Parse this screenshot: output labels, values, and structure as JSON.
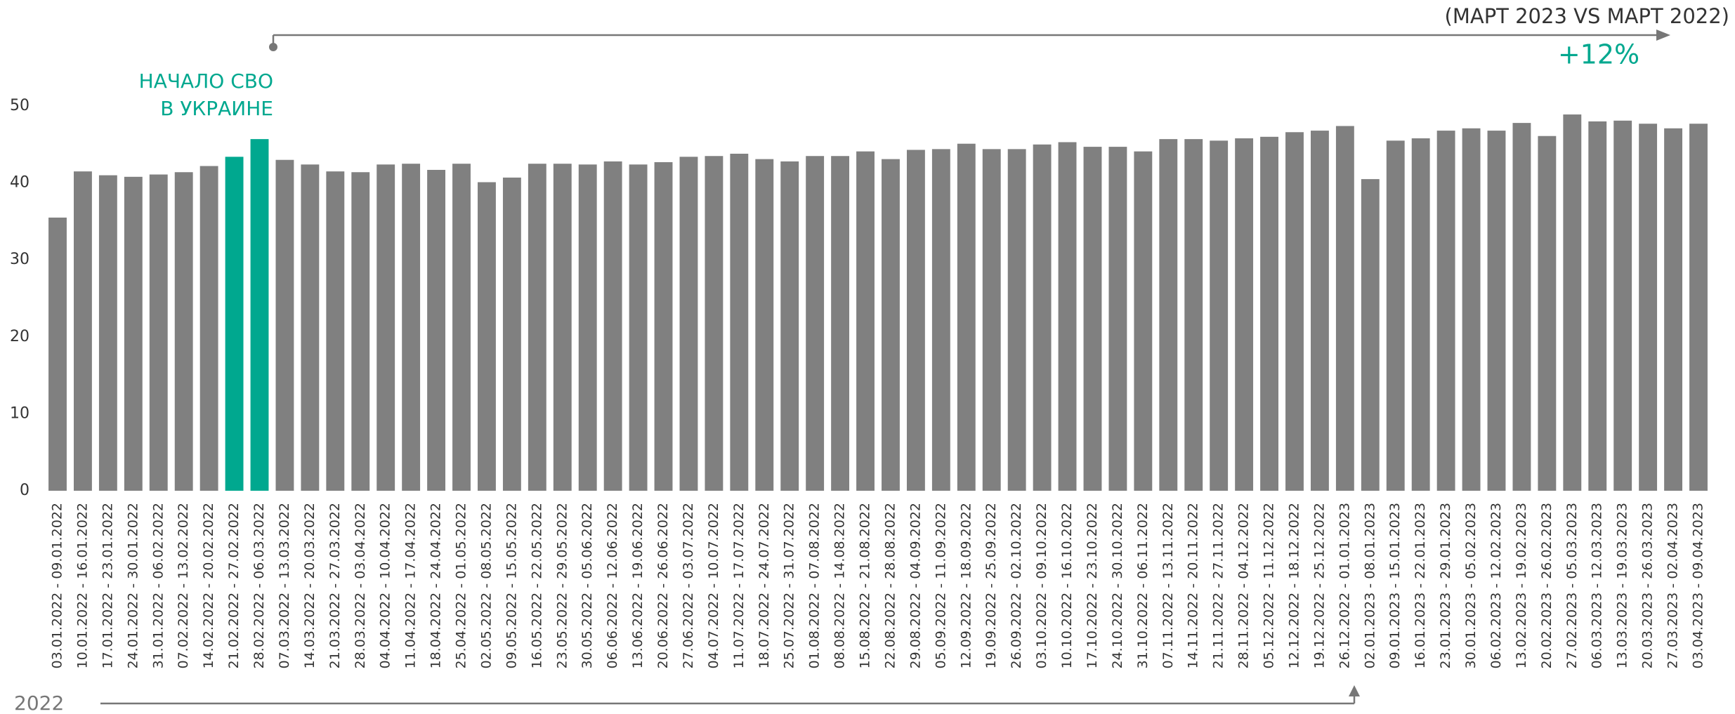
{
  "chart_data": {
    "type": "bar",
    "annotations": [
      "НАЧАЛО СВО",
      "В УКРАИНЕ",
      "(МАРТ 2023 VS МАРТ 2022)",
      "+12%",
      "2022"
    ],
    "categories": [
      "03.01.2022 - 09.01.2022",
      "10.01.2022 - 16.01.2022",
      "17.01.2022 - 23.01.2022",
      "24.01.2022 - 30.01.2022",
      "31.01.2022 - 06.02.2022",
      "07.02.2022 - 13.02.2022",
      "14.02.2022 - 20.02.2022",
      "21.02.2022 - 27.02.2022",
      "28.02.2022 - 06.03.2022",
      "07.03.2022 - 13.03.2022",
      "14.03.2022 - 20.03.2022",
      "21.03.2022 - 27.03.2022",
      "28.03.2022 - 03.04.2022",
      "04.04.2022 - 10.04.2022",
      "11.04.2022 - 17.04.2022",
      "18.04.2022 - 24.04.2022",
      "25.04.2022 - 01.05.2022",
      "02.05.2022 - 08.05.2022",
      "09.05.2022 - 15.05.2022",
      "16.05.2022 - 22.05.2022",
      "23.05.2022 - 29.05.2022",
      "30.05.2022 - 05.06.2022",
      "06.06.2022 - 12.06.2022",
      "13.06.2022 - 19.06.2022",
      "20.06.2022 - 26.06.2022",
      "27.06.2022 - 03.07.2022",
      "04.07.2022 - 10.07.2022",
      "11.07.2022 - 17.07.2022",
      "18.07.2022 - 24.07.2022",
      "25.07.2022 - 31.07.2022",
      "01.08.2022 - 07.08.2022",
      "08.08.2022 - 14.08.2022",
      "15.08.2022 - 21.08.2022",
      "22.08.2022 - 28.08.2022",
      "29.08.2022 - 04.09.2022",
      "05.09.2022 - 11.09.2022",
      "12.09.2022 - 18.09.2022",
      "19.09.2022 - 25.09.2022",
      "26.09.2022 - 02.10.2022",
      "03.10.2022 - 09.10.2022",
      "10.10.2022 - 16.10.2022",
      "17.10.2022 - 23.10.2022",
      "24.10.2022 - 30.10.2022",
      "31.10.2022 - 06.11.2022",
      "07.11.2022 - 13.11.2022",
      "14.11.2022 - 20.11.2022",
      "21.11.2022 - 27.11.2022",
      "28.11.2022 - 04.12.2022",
      "05.12.2022 - 11.12.2022",
      "12.12.2022 - 18.12.2022",
      "19.12.2022 - 25.12.2022",
      "26.12.2022 - 01.01.2023",
      "02.01.2023 - 08.01.2023",
      "09.01.2023 - 15.01.2023",
      "16.01.2023 - 22.01.2023",
      "23.01.2023 - 29.01.2023",
      "30.01.2023 - 05.02.2023",
      "06.02.2023 - 12.02.2023",
      "13.02.2023 - 19.02.2023",
      "20.02.2023 - 26.02.2023",
      "27.02.2023 - 05.03.2023",
      "06.03.2023 - 12.03.2023",
      "13.03.2023 - 19.03.2023",
      "20.03.2023 - 26.03.2023",
      "27.03.2023 - 02.04.2023",
      "03.04.2023 - 09.04.2023"
    ],
    "values": [
      35.5,
      41.5,
      41,
      40.8,
      41.1,
      41.4,
      42.2,
      43.4,
      45.7,
      43,
      42.4,
      41.5,
      41.4,
      42.4,
      42.5,
      41.7,
      42.5,
      40.1,
      40.7,
      42.5,
      42.5,
      42.4,
      42.8,
      42.4,
      42.7,
      43.4,
      43.5,
      43.8,
      43.1,
      42.8,
      43.5,
      43.5,
      44.1,
      43.1,
      44.3,
      44.4,
      45.1,
      44.4,
      44.4,
      45,
      45.3,
      44.7,
      44.7,
      44.1,
      45.7,
      45.7,
      45.5,
      45.8,
      46,
      46.6,
      46.8,
      47.4,
      40.5,
      45.5,
      45.8,
      46.8,
      47.1,
      46.8,
      47.8,
      46.1,
      48.9,
      48,
      48.1,
      47.7,
      47.1,
      47.7
    ],
    "colors": [
      "#808080",
      "#808080",
      "#808080",
      "#808080",
      "#808080",
      "#808080",
      "#808080",
      "#00a88f",
      "#00a88f",
      "#808080",
      "#808080",
      "#808080",
      "#808080",
      "#808080",
      "#808080",
      "#808080",
      "#808080",
      "#808080",
      "#808080",
      "#808080",
      "#808080",
      "#808080",
      "#808080",
      "#808080",
      "#808080",
      "#808080",
      "#808080",
      "#808080",
      "#808080",
      "#808080",
      "#808080",
      "#808080",
      "#808080",
      "#808080",
      "#808080",
      "#808080",
      "#808080",
      "#808080",
      "#808080",
      "#808080",
      "#808080",
      "#808080",
      "#808080",
      "#808080",
      "#808080",
      "#808080",
      "#808080",
      "#808080",
      "#808080",
      "#808080",
      "#808080",
      "#808080",
      "#808080",
      "#808080",
      "#808080",
      "#808080",
      "#808080",
      "#808080",
      "#808080",
      "#808080",
      "#808080",
      "#808080",
      "#808080",
      "#808080",
      "#808080",
      "#808080"
    ],
    "ylim": [
      0,
      50
    ],
    "yticks": [
      0,
      10,
      20,
      30,
      40,
      50
    ],
    "grid": false
  }
}
